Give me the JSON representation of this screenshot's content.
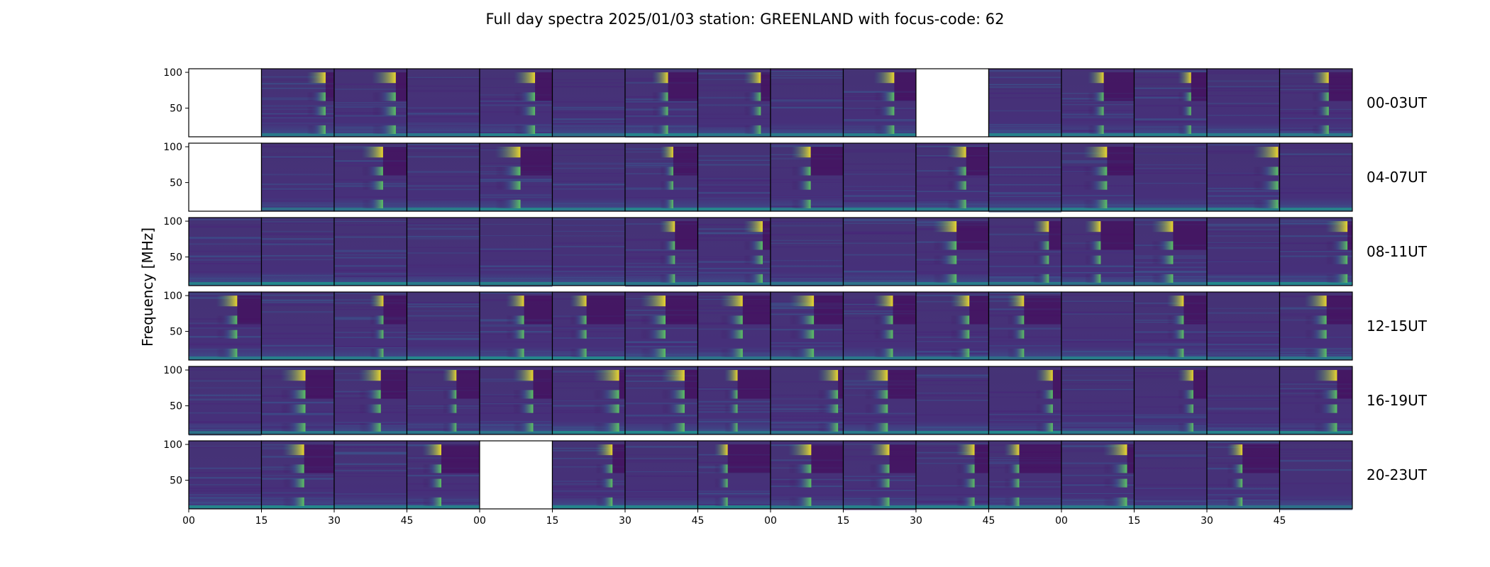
{
  "chart_data": {
    "type": "heatmap",
    "title": "Full day spectra 2025/01/03 station: GREENLAND with focus-code: 62",
    "ylabel": "Frequency [MHz]",
    "ylim": [
      10,
      105
    ],
    "yticks": [
      50,
      100
    ],
    "row_labels": [
      "00-03UT",
      "04-07UT",
      "08-11UT",
      "12-15UT",
      "16-19UT",
      "20-23UT"
    ],
    "x_tick_labels": [
      "00",
      "15",
      "30",
      "45",
      "00",
      "15",
      "30",
      "45",
      "00",
      "15",
      "30",
      "45",
      "00",
      "15",
      "30",
      "45"
    ],
    "panels_per_row": 16,
    "minutes_per_panel": 15,
    "colormap": [
      "#440154",
      "#3b528b",
      "#21918c",
      "#5ec962",
      "#fde725"
    ],
    "empty_panels": [
      [
        0,
        0
      ],
      [
        0,
        10
      ],
      [
        1,
        0
      ],
      [
        5,
        4
      ]
    ],
    "burst_panels": [
      [
        0,
        1
      ],
      [
        0,
        2
      ],
      [
        0,
        4
      ],
      [
        0,
        6
      ],
      [
        0,
        7
      ],
      [
        0,
        9
      ],
      [
        0,
        12
      ],
      [
        0,
        13
      ],
      [
        0,
        15
      ],
      [
        1,
        2
      ],
      [
        1,
        4
      ],
      [
        1,
        6
      ],
      [
        1,
        8
      ],
      [
        1,
        10
      ],
      [
        1,
        12
      ],
      [
        1,
        14
      ],
      [
        2,
        6
      ],
      [
        2,
        7
      ],
      [
        2,
        10
      ],
      [
        2,
        11
      ],
      [
        2,
        12
      ],
      [
        2,
        13
      ],
      [
        2,
        15
      ],
      [
        3,
        0
      ],
      [
        3,
        2
      ],
      [
        3,
        4
      ],
      [
        3,
        5
      ],
      [
        3,
        6
      ],
      [
        3,
        7
      ],
      [
        3,
        8
      ],
      [
        3,
        9
      ],
      [
        3,
        10
      ],
      [
        3,
        11
      ],
      [
        3,
        13
      ],
      [
        3,
        15
      ],
      [
        4,
        1
      ],
      [
        4,
        2
      ],
      [
        4,
        3
      ],
      [
        4,
        4
      ],
      [
        4,
        5
      ],
      [
        4,
        6
      ],
      [
        4,
        7
      ],
      [
        4,
        8
      ],
      [
        4,
        9
      ],
      [
        4,
        11
      ],
      [
        4,
        13
      ],
      [
        4,
        15
      ],
      [
        5,
        1
      ],
      [
        5,
        3
      ],
      [
        5,
        5
      ],
      [
        5,
        7
      ],
      [
        5,
        8
      ],
      [
        5,
        9
      ],
      [
        5,
        10
      ],
      [
        5,
        11
      ],
      [
        5,
        12
      ],
      [
        5,
        14
      ]
    ]
  }
}
